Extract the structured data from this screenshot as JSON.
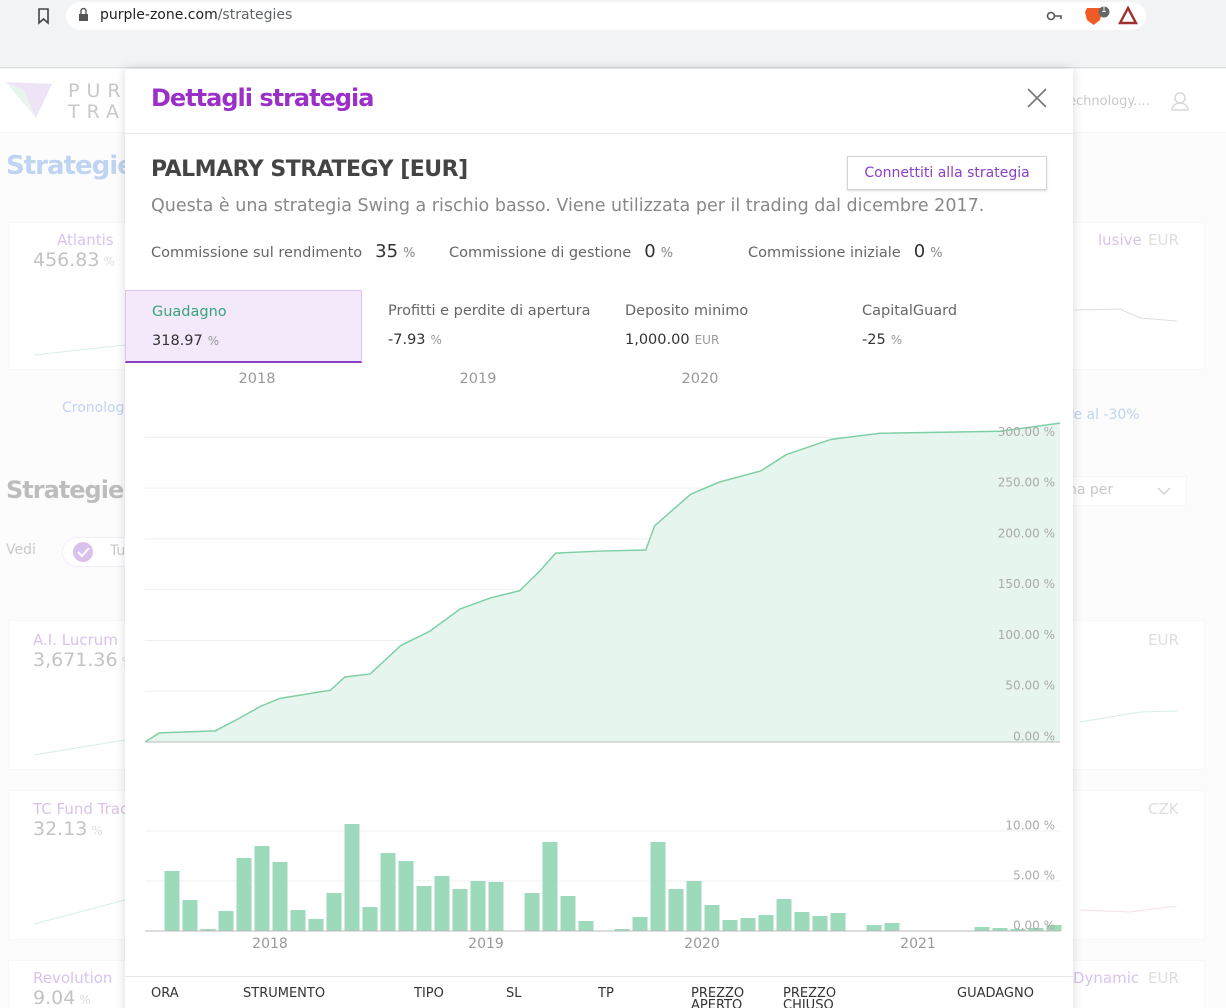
{
  "browser": {
    "url_host": "purple-zone.com",
    "url_path": "/strategies",
    "badge": "1"
  },
  "background": {
    "logo_top": "PUR",
    "logo_bottom": "TRA",
    "account": "echnology....",
    "heading": "Strategie pi",
    "history_link": "Cronolog",
    "drawdown_link": "re al -30%",
    "strategies_heading": "Strategie",
    "filter_label": "Vedi",
    "filter_chip": "Tu",
    "sort": "na per",
    "left_cards": [
      {
        "name": "Atlantis",
        "value": "456.83",
        "unit": "%"
      },
      {
        "name": "A.I. Lucrum",
        "value": "3,671.36",
        "unit": "%"
      },
      {
        "name": "TC Fund Trac",
        "value": "32.13",
        "unit": "%"
      },
      {
        "name": "Revolution",
        "value": "9.04",
        "unit": "%"
      }
    ],
    "right_cards": [
      {
        "name": "lusive",
        "currency": "EUR"
      },
      {
        "name": null,
        "currency": "EUR"
      },
      {
        "name": null,
        "currency": "CZK"
      },
      {
        "name": "Dynamic",
        "currency": "EUR"
      }
    ]
  },
  "modal": {
    "title": "Dettagli strategia",
    "strategy_name": "PALMARY STRATEGY [EUR]",
    "connect_button": "Connettiti alla strategia",
    "description": "Questa è una strategia Swing a rischio basso. Viene utilizzata per il trading dal dicembre 2017.",
    "fees": [
      {
        "label": "Commissione sul rendimento",
        "value": "35",
        "unit": "%"
      },
      {
        "label": "Commissione di gestione",
        "value": "0",
        "unit": "%"
      },
      {
        "label": "Commissione iniziale",
        "value": "0",
        "unit": "%"
      }
    ],
    "stats": [
      {
        "label": "Guadagno",
        "value": "318.97",
        "unit": "%"
      },
      {
        "label": "Profitti e perdite di apertura",
        "value": "-7.93",
        "unit": "%"
      },
      {
        "label": "Deposito minimo",
        "value": "1,000.00",
        "unit": "EUR"
      },
      {
        "label": "CapitalGuard",
        "value": "-25",
        "unit": "%"
      }
    ],
    "year_tabs": [
      "2018",
      "2019",
      "2020"
    ],
    "table_headers": [
      "ORA",
      "STRUMENTO",
      "TIPO",
      "SL",
      "TP",
      "PREZZO APERTO",
      "PREZZO CHIUSO",
      "GUADAGNO"
    ]
  },
  "chart_data": [
    {
      "type": "area",
      "color": "#7fcfa5",
      "fill": "#e6f6ee",
      "grid": true,
      "x": [
        0,
        0.8,
        3.9,
        5.3,
        6.4,
        7.5,
        10.3,
        11.1,
        12.5,
        14.2,
        15.8,
        17.5,
        19.2,
        20.8,
        21.9,
        22.8,
        25.3,
        27.8,
        28.3,
        30.3,
        31.9,
        34.2,
        35.6,
        38.1,
        40.8,
        47.5,
        50.8
      ],
      "values": [
        0,
        9,
        11,
        24,
        35,
        43,
        51,
        64,
        67,
        95,
        109,
        131,
        142,
        149,
        168,
        186,
        188,
        189,
        213,
        244,
        256,
        267,
        283,
        298,
        304,
        306,
        314
      ],
      "xlim": [
        0,
        50.8
      ],
      "ylim": [
        0,
        320
      ],
      "yticks": [
        {
          "value": 0,
          "label": "0.00 %"
        },
        {
          "value": 50,
          "label": "50.00 %"
        },
        {
          "value": 100,
          "label": "100.00 %"
        },
        {
          "value": 150,
          "label": "150.00 %"
        },
        {
          "value": 200,
          "label": "200.00 %"
        },
        {
          "value": 250,
          "label": "250.00 %"
        },
        {
          "value": 300,
          "label": "300.00 %"
        }
      ]
    },
    {
      "type": "bar",
      "color": "#9dd9bb",
      "grid": true,
      "values": [
        6.0,
        3.1,
        0.2,
        2.0,
        7.3,
        8.5,
        6.9,
        2.1,
        1.2,
        3.8,
        10.7,
        2.4,
        7.8,
        7.0,
        4.5,
        5.5,
        4.2,
        5.0,
        4.9,
        0,
        3.8,
        8.9,
        3.5,
        1.0,
        0,
        0.2,
        1.4,
        8.9,
        4.2,
        5.0,
        2.6,
        1.1,
        1.3,
        1.6,
        3.2,
        1.9,
        1.5,
        1.8,
        0,
        0.6,
        0.8,
        0,
        0,
        0,
        0,
        0.4,
        0.3,
        0.2,
        0.3,
        0.6
      ],
      "ylim": [
        0,
        11
      ],
      "yticks": [
        {
          "value": 0,
          "label": "0.00 %"
        },
        {
          "value": 5,
          "label": "5.00 %"
        },
        {
          "value": 10,
          "label": "10.00 %"
        }
      ],
      "xlabels": [
        "2018",
        "2019",
        "2020",
        "2021"
      ]
    }
  ]
}
